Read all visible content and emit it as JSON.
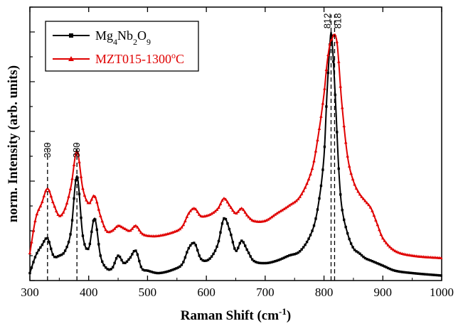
{
  "chart_data": {
    "type": "line",
    "title": "",
    "xlabel_main": "Raman Shift (cm",
    "xlabel_sup": "-1",
    "xlabel_end": ")",
    "ylabel": "norm. Intensity (arb. units)",
    "xlim": [
      300,
      1000
    ],
    "ylim": [
      0,
      1.1
    ],
    "x_ticks": [
      300,
      400,
      500,
      600,
      700,
      800,
      900,
      1000
    ],
    "x_tick_labels": [
      "300",
      "400",
      "500",
      "600",
      "700",
      "800",
      "900",
      "1000"
    ],
    "legend_position": "top-left",
    "series": [
      {
        "name": "Mg4Nb2O9",
        "legend_parts": [
          {
            "t": "Mg",
            "s": "n"
          },
          {
            "t": "4",
            "s": "sub"
          },
          {
            "t": "Nb",
            "s": "n"
          },
          {
            "t": "2",
            "s": "sub"
          },
          {
            "t": "O",
            "s": "n"
          },
          {
            "t": "9",
            "s": "sub"
          }
        ],
        "color": "#000000",
        "marker": "square",
        "x": [
          300,
          310,
          320,
          330,
          340,
          350,
          360,
          370,
          380,
          390,
          400,
          410,
          420,
          430,
          440,
          450,
          460,
          470,
          480,
          490,
          500,
          520,
          550,
          560,
          570,
          580,
          590,
          600,
          610,
          620,
          630,
          640,
          650,
          660,
          670,
          680,
          700,
          720,
          740,
          760,
          780,
          790,
          800,
          805,
          810,
          812,
          815,
          820,
          825,
          830,
          840,
          850,
          860,
          870,
          880,
          900,
          920,
          950,
          1000
        ],
        "y": [
          0.03,
          0.1,
          0.14,
          0.17,
          0.1,
          0.1,
          0.12,
          0.2,
          0.42,
          0.18,
          0.13,
          0.25,
          0.1,
          0.05,
          0.05,
          0.1,
          0.07,
          0.09,
          0.12,
          0.05,
          0.04,
          0.03,
          0.05,
          0.07,
          0.13,
          0.15,
          0.09,
          0.08,
          0.1,
          0.15,
          0.25,
          0.2,
          0.12,
          0.16,
          0.12,
          0.08,
          0.07,
          0.08,
          0.1,
          0.12,
          0.2,
          0.3,
          0.5,
          0.75,
          0.95,
          1.0,
          0.92,
          0.7,
          0.45,
          0.3,
          0.19,
          0.13,
          0.11,
          0.09,
          0.08,
          0.06,
          0.04,
          0.03,
          0.02
        ]
      },
      {
        "name": "MZT015-1300oC",
        "legend_parts": [
          {
            "t": "MZT015-1300",
            "s": "n"
          },
          {
            "t": "o",
            "s": "sup"
          },
          {
            "t": "C",
            "s": "n"
          }
        ],
        "color": "#e00000",
        "marker": "triangle",
        "x": [
          300,
          310,
          320,
          330,
          340,
          350,
          360,
          370,
          380,
          390,
          400,
          410,
          420,
          430,
          440,
          450,
          460,
          470,
          480,
          490,
          500,
          520,
          550,
          560,
          570,
          580,
          590,
          600,
          610,
          620,
          630,
          640,
          650,
          660,
          670,
          680,
          700,
          720,
          740,
          760,
          780,
          790,
          800,
          805,
          810,
          815,
          818,
          822,
          825,
          830,
          840,
          850,
          860,
          870,
          880,
          890,
          900,
          920,
          950,
          1000
        ],
        "y": [
          0.11,
          0.25,
          0.31,
          0.37,
          0.31,
          0.26,
          0.29,
          0.38,
          0.52,
          0.37,
          0.31,
          0.34,
          0.26,
          0.2,
          0.2,
          0.22,
          0.21,
          0.2,
          0.22,
          0.19,
          0.18,
          0.18,
          0.2,
          0.22,
          0.27,
          0.29,
          0.26,
          0.26,
          0.27,
          0.29,
          0.33,
          0.3,
          0.27,
          0.29,
          0.26,
          0.24,
          0.24,
          0.27,
          0.3,
          0.34,
          0.45,
          0.58,
          0.75,
          0.87,
          0.95,
          0.98,
          0.99,
          0.96,
          0.88,
          0.72,
          0.5,
          0.4,
          0.35,
          0.32,
          0.29,
          0.23,
          0.17,
          0.12,
          0.1,
          0.09
        ]
      }
    ],
    "peak_markers": [
      {
        "x": 330,
        "label": "330",
        "y_top": 0.55
      },
      {
        "x": 380,
        "label": "380",
        "y_top": 0.55
      },
      {
        "x": 812,
        "label": "812",
        "y_top": 1.07
      },
      {
        "x": 818,
        "label": "818",
        "y_top": 1.07
      }
    ]
  }
}
